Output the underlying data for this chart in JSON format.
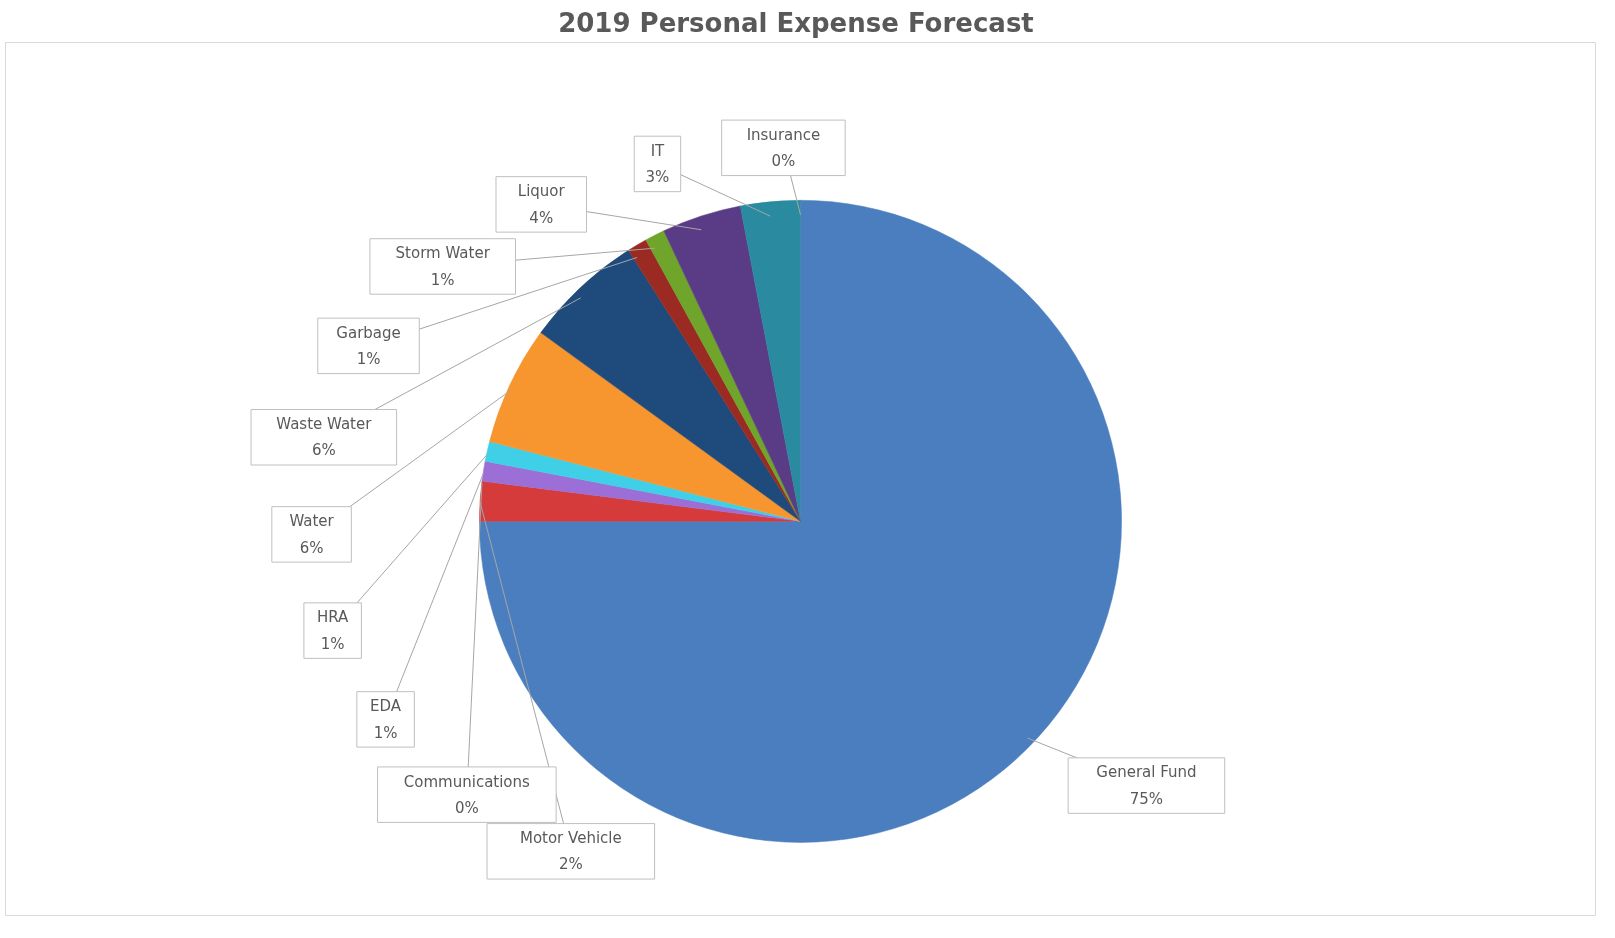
{
  "chart_data": {
    "type": "pie",
    "title": "2019  Personal Expense Forecast",
    "categories": [
      "General Fund",
      "Motor Vehicle",
      "Communications",
      "EDA",
      "HRA",
      "Water",
      "Waste Water",
      "Garbage",
      "Storm Water",
      "Liquor",
      "IT",
      "Insurance"
    ],
    "values": [
      75,
      2,
      0,
      1,
      1,
      6,
      6,
      1,
      1,
      4,
      3,
      0
    ],
    "value_labels": [
      "75%",
      "2%",
      "0%",
      "1%",
      "1%",
      "6%",
      "6%",
      "1%",
      "1%",
      "4%",
      "3%",
      "0%"
    ],
    "colors": [
      "#4a7ebf",
      "#d63b3b",
      "#8e8e8e",
      "#9b6fd6",
      "#3fd0e8",
      "#f7962f",
      "#1f4a7c",
      "#9b2a22",
      "#6fa52a",
      "#5a3c86",
      "#2a8aa0",
      "#e2531c"
    ],
    "legend": false
  }
}
